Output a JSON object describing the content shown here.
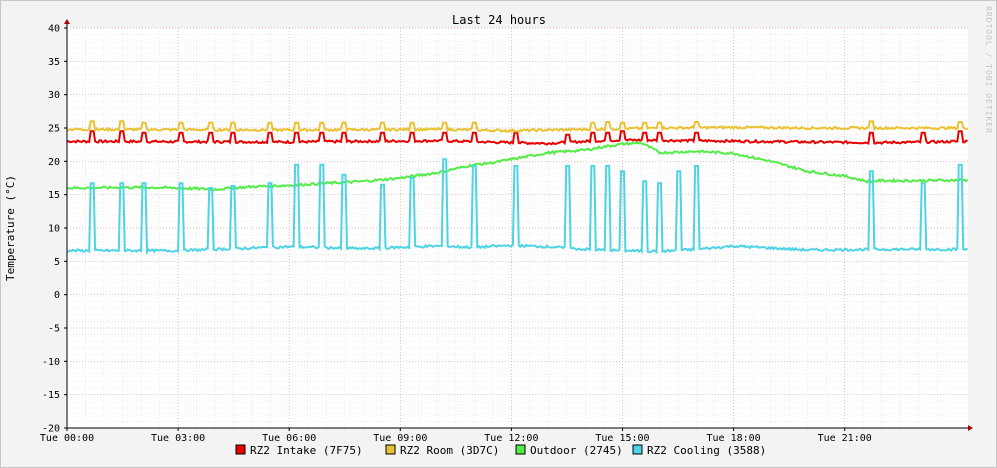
{
  "chart_data": {
    "type": "line",
    "title": "Last 24 hours",
    "ylabel": "Temperature (°C)",
    "xlabel": "",
    "ylim": [
      -20,
      40
    ],
    "xlim": [
      0,
      24.33
    ],
    "y_ticks": [
      40,
      35,
      30,
      25,
      20,
      15,
      10,
      5,
      0,
      -5,
      -10,
      -15,
      -20
    ],
    "x_ticks": [
      {
        "x": 0,
        "label": "Tue 00:00"
      },
      {
        "x": 3,
        "label": "Tue 03:00"
      },
      {
        "x": 6,
        "label": "Tue 06:00"
      },
      {
        "x": 9,
        "label": "Tue 09:00"
      },
      {
        "x": 12,
        "label": "Tue 12:00"
      },
      {
        "x": 15,
        "label": "Tue 15:00"
      },
      {
        "x": 18,
        "label": "Tue 18:00"
      },
      {
        "x": 21,
        "label": "Tue 21:00"
      }
    ],
    "grid": true,
    "legend_position": "bottom",
    "watermark": "RRDTOOL / TOBI OETIKER",
    "series": [
      {
        "name": "RZ2 Intake (7F75)",
        "color": "#e80000",
        "base": [
          [
            0,
            23.0
          ],
          [
            6,
            22.9
          ],
          [
            10,
            23.1
          ],
          [
            12,
            22.8
          ],
          [
            13,
            22.7
          ],
          [
            14,
            23.0
          ],
          [
            15,
            23.2
          ],
          [
            17,
            23.1
          ],
          [
            20,
            22.9
          ],
          [
            22,
            22.8
          ],
          [
            24.33,
            23.0
          ]
        ],
        "spikes": [
          [
            0.7,
            24.5
          ],
          [
            1.5,
            24.5
          ],
          [
            2.1,
            24.3
          ],
          [
            3.1,
            24.3
          ],
          [
            3.9,
            24.3
          ],
          [
            4.5,
            24.3
          ],
          [
            5.5,
            24.3
          ],
          [
            6.2,
            24.3
          ],
          [
            6.9,
            24.3
          ],
          [
            7.5,
            24.3
          ],
          [
            8.5,
            24.3
          ],
          [
            9.3,
            24.3
          ],
          [
            10.2,
            24.3
          ],
          [
            11,
            24.3
          ],
          [
            12.1,
            24.3
          ],
          [
            13.5,
            24.0
          ],
          [
            14.2,
            24.3
          ],
          [
            14.6,
            24.3
          ],
          [
            15,
            24.5
          ],
          [
            15.6,
            24.3
          ],
          [
            16,
            24.3
          ],
          [
            17,
            24.3
          ],
          [
            21.7,
            24.3
          ],
          [
            23.1,
            24.3
          ],
          [
            24.1,
            24.5
          ]
        ]
      },
      {
        "name": "RZ2 Room (3D7C)",
        "color": "#eac231",
        "base": [
          [
            0,
            24.8
          ],
          [
            6,
            24.7
          ],
          [
            10,
            24.8
          ],
          [
            12,
            24.6
          ],
          [
            14,
            24.8
          ],
          [
            16,
            25.0
          ],
          [
            18,
            25.1
          ],
          [
            20,
            25.0
          ],
          [
            24.33,
            25.0
          ]
        ],
        "spikes": [
          [
            0.7,
            26.0
          ],
          [
            1.5,
            26.0
          ],
          [
            2.1,
            25.8
          ],
          [
            3.1,
            25.8
          ],
          [
            3.9,
            25.8
          ],
          [
            4.5,
            25.8
          ],
          [
            5.5,
            25.8
          ],
          [
            6.2,
            25.8
          ],
          [
            6.9,
            25.8
          ],
          [
            7.5,
            25.8
          ],
          [
            8.5,
            25.8
          ],
          [
            9.3,
            25.8
          ],
          [
            10.2,
            25.8
          ],
          [
            11,
            25.8
          ],
          [
            14.2,
            25.8
          ],
          [
            14.6,
            25.9
          ],
          [
            15,
            25.8
          ],
          [
            15.6,
            25.8
          ],
          [
            16,
            25.8
          ],
          [
            17,
            25.9
          ],
          [
            21.7,
            26.0
          ],
          [
            24.1,
            25.9
          ]
        ]
      },
      {
        "name": "Outdoor (2745)",
        "color": "#54ec48",
        "base": [
          [
            0,
            16.0
          ],
          [
            2,
            16.1
          ],
          [
            3,
            16.0
          ],
          [
            4,
            15.8
          ],
          [
            5,
            16.2
          ],
          [
            6,
            16.4
          ],
          [
            7,
            16.7
          ],
          [
            8,
            17.0
          ],
          [
            9,
            17.5
          ],
          [
            10,
            18.3
          ],
          [
            11,
            19.5
          ],
          [
            11.5,
            19.8
          ],
          [
            12,
            20.3
          ],
          [
            12.5,
            20.8
          ],
          [
            13,
            21.3
          ],
          [
            14,
            21.7
          ],
          [
            14.5,
            22.2
          ],
          [
            15,
            22.6
          ],
          [
            15.5,
            22.8
          ],
          [
            16,
            21.3
          ],
          [
            17,
            21.5
          ],
          [
            18,
            21.2
          ],
          [
            19,
            20.0
          ],
          [
            20,
            18.5
          ],
          [
            21,
            17.8
          ],
          [
            21.6,
            17.0
          ],
          [
            22,
            17.1
          ],
          [
            23,
            17.1
          ],
          [
            24.33,
            17.2
          ]
        ],
        "spikes": []
      },
      {
        "name": "RZ2 Cooling (3588)",
        "color": "#4dd3e4",
        "base": [
          [
            0,
            6.6
          ],
          [
            3,
            6.6
          ],
          [
            4,
            6.8
          ],
          [
            6,
            7.2
          ],
          [
            8,
            6.9
          ],
          [
            10,
            7.3
          ],
          [
            11,
            7.1
          ],
          [
            12,
            7.4
          ],
          [
            13,
            7.2
          ],
          [
            14,
            6.8
          ],
          [
            15,
            6.6
          ],
          [
            16,
            6.5
          ],
          [
            17,
            6.8
          ],
          [
            18,
            7.3
          ],
          [
            20,
            6.7
          ],
          [
            22,
            6.8
          ],
          [
            24.33,
            6.8
          ]
        ],
        "spikes": [
          [
            0.7,
            16.7
          ],
          [
            1.5,
            16.7
          ],
          [
            2.1,
            16.7
          ],
          [
            3.1,
            16.7
          ],
          [
            3.9,
            16.0
          ],
          [
            4.5,
            16.3
          ],
          [
            5.5,
            16.7
          ],
          [
            6.2,
            19.5
          ],
          [
            6.9,
            19.5
          ],
          [
            7.5,
            18.0
          ],
          [
            8.5,
            16.5
          ],
          [
            9.3,
            17.5
          ],
          [
            10.2,
            20.3
          ],
          [
            11,
            19.3
          ],
          [
            12.1,
            19.3
          ],
          [
            13.5,
            19.3
          ],
          [
            14.2,
            19.3
          ],
          [
            14.6,
            19.3
          ],
          [
            15,
            18.5
          ],
          [
            15.6,
            17.0
          ],
          [
            16,
            16.7
          ],
          [
            16.5,
            18.5
          ],
          [
            17,
            19.3
          ],
          [
            21.7,
            18.5
          ],
          [
            23.1,
            16.7
          ],
          [
            24.1,
            19.5
          ]
        ],
        "noise": [
          [
            12.8,
            16.8
          ],
          [
            18.0,
            18.8
          ]
        ]
      }
    ]
  }
}
